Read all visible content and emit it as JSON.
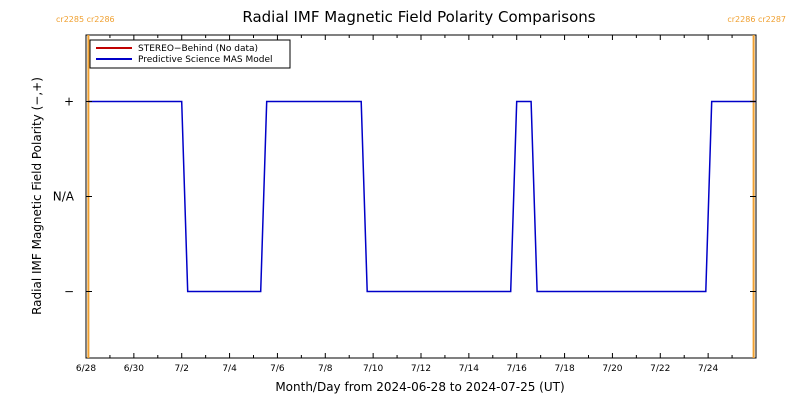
{
  "chart_data": {
    "type": "line",
    "title": "Radial IMF Magnetic Field Polarity Comparisons",
    "xlabel": "Month/Day from 2024-06-28 to 2024-07-25 (UT)",
    "ylabel": "Radial IMF Magnetic Field Polarity (−,+)",
    "xlim": [
      0,
      28
    ],
    "ylim": [
      -1.7,
      1.7
    ],
    "x_tick_labels": [
      "6/28",
      "6/30",
      "7/2",
      "7/4",
      "7/6",
      "7/8",
      "7/10",
      "7/12",
      "7/14",
      "7/16",
      "7/18",
      "7/20",
      "7/22",
      "7/24"
    ],
    "x_ticks": [
      0,
      2,
      4,
      6,
      8,
      10,
      12,
      14,
      16,
      18,
      20,
      22,
      24,
      26
    ],
    "y_ticks": [
      {
        "value": 1,
        "label": "+"
      },
      {
        "value": 0,
        "label": "N/A"
      },
      {
        "value": -1,
        "label": "−"
      }
    ],
    "legend": {
      "position": "top-left",
      "entries": [
        {
          "name": "STEREO−Behind (No data)",
          "color": "#c00000"
        },
        {
          "name": "Predictive Science MAS Model",
          "color": "#0000c8"
        }
      ]
    },
    "series": [
      {
        "name": "Predictive Science MAS Model",
        "color": "#0000c8",
        "x": [
          0.1,
          4.0,
          4.25,
          7.3,
          7.55,
          11.5,
          11.75,
          17.75,
          18.0,
          18.6,
          18.85,
          25.9,
          26.15,
          28.0
        ],
        "y": [
          1,
          1,
          -1,
          -1,
          1,
          1,
          -1,
          -1,
          1,
          1,
          -1,
          -1,
          1,
          1
        ]
      }
    ],
    "rotation_markers": [
      {
        "x": 0.1,
        "label": "cr2285 cr2286",
        "side": "left",
        "color": "#f0a030"
      },
      {
        "x": 27.9,
        "label": "cr2286 cr2287",
        "side": "right",
        "color": "#f0a030"
      }
    ]
  }
}
